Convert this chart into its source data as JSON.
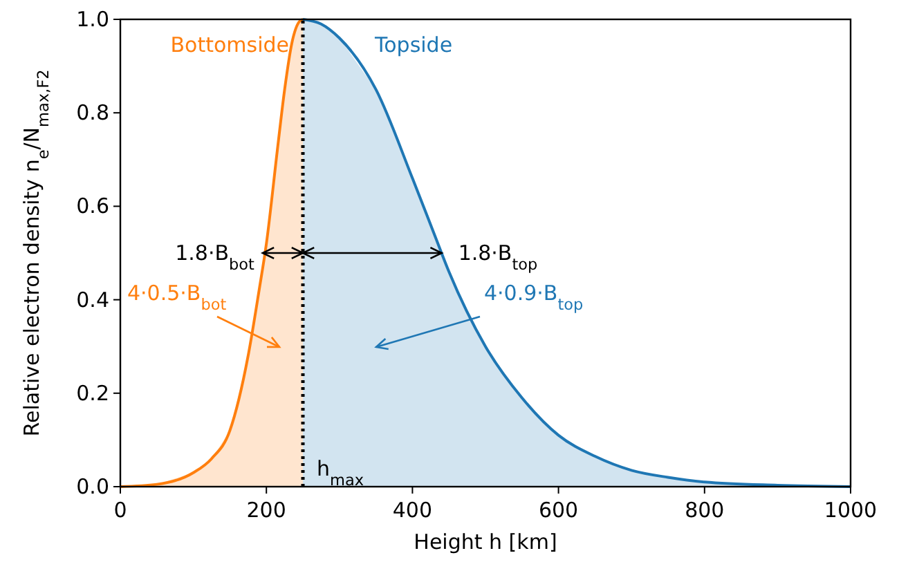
{
  "chart_data": {
    "type": "area",
    "xlabel": "Height h [km]",
    "ylabel": "Relative electron density n$_{e}$/N$_{max,F2}$",
    "xlim": [
      0,
      1000
    ],
    "xticks": [
      0,
      200,
      400,
      600,
      800,
      1000
    ],
    "ylim": [
      0,
      1.0
    ],
    "yticks": [
      {
        "value": 0,
        "label": "0.0"
      },
      {
        "value": 0.2,
        "label": "0.2"
      },
      {
        "value": 0.4,
        "label": "0.4"
      },
      {
        "value": 0.6,
        "label": "0.6"
      },
      {
        "value": 0.8,
        "label": "0.8"
      },
      {
        "value": 1.0,
        "label": "1.0"
      }
    ],
    "grid": false,
    "series": [
      {
        "name": "Bottomside",
        "color": "#ff7f0e",
        "x": [
          0,
          50,
          100,
          125,
          150,
          175,
          190,
          200,
          215,
          225,
          235,
          245,
          250
        ],
        "values": [
          0,
          0.005,
          0.03,
          0.06,
          0.12,
          0.28,
          0.42,
          0.52,
          0.72,
          0.85,
          0.95,
          0.995,
          1.0
        ]
      },
      {
        "name": "Topside",
        "color": "#1f77b4",
        "x": [
          250,
          275,
          300,
          350,
          400,
          430,
          450,
          500,
          550,
          600,
          650,
          700,
          750,
          800,
          900,
          1000
        ],
        "values": [
          1.0,
          0.99,
          0.96,
          0.85,
          0.66,
          0.54,
          0.46,
          0.3,
          0.19,
          0.11,
          0.065,
          0.035,
          0.02,
          0.01,
          0.003,
          0.0
        ]
      }
    ],
    "ref_lines": [
      {
        "axis": "x",
        "value": 250,
        "label": "h$_{max}$",
        "line_style": "dotted",
        "color": "#000000"
      }
    ],
    "annotations": [
      {
        "text": "1.8·B$_{bot}$",
        "x": 195,
        "y": 0.5
      },
      {
        "text": "1.8·B$_{top}$",
        "x": 440,
        "y": 0.5
      },
      "4·0.5·B$_{bot}$",
      "4·0.9·B$_{top}$"
    ]
  }
}
